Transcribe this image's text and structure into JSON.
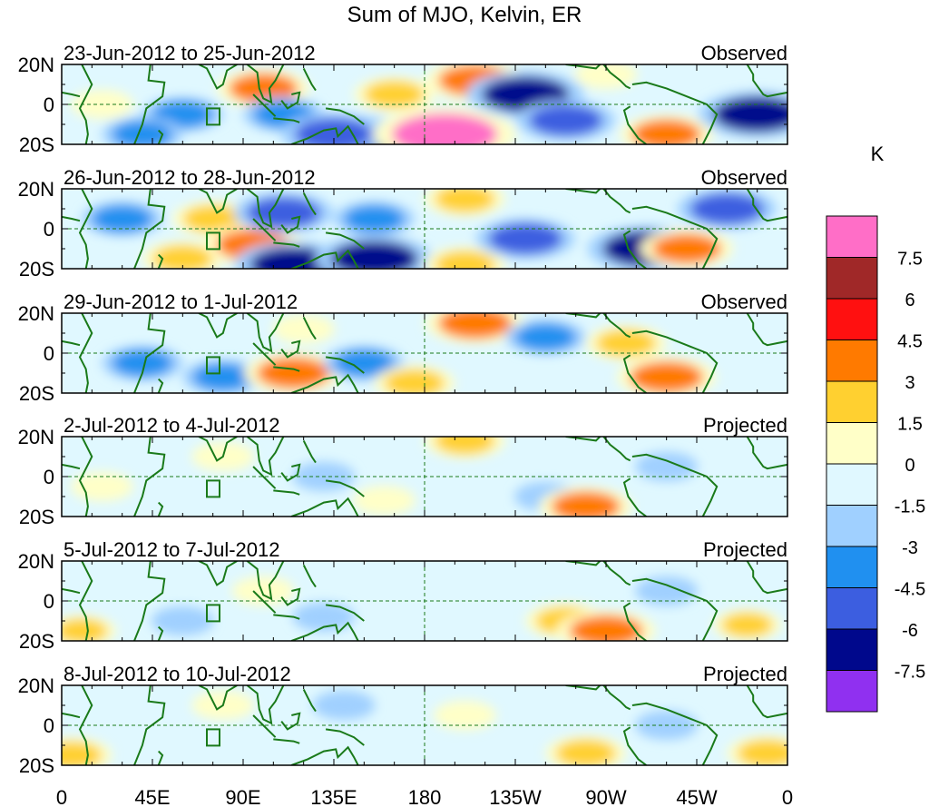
{
  "figure": {
    "title": "Sum of MJO, Kelvin, ER",
    "lat_labels": [
      "20N",
      "0",
      "20S"
    ],
    "lon_labels": [
      "0",
      "45E",
      "90E",
      "135E",
      "180",
      "135W",
      "90W",
      "45W",
      "0"
    ],
    "panels": [
      {
        "date_range": "23-Jun-2012 to 25-Jun-2012",
        "status": "Observed"
      },
      {
        "date_range": "26-Jun-2012 to 28-Jun-2012",
        "status": "Observed"
      },
      {
        "date_range": "29-Jun-2012 to 1-Jul-2012",
        "status": "Observed"
      },
      {
        "date_range": "2-Jul-2012 to 4-Jul-2012",
        "status": "Projected"
      },
      {
        "date_range": "5-Jul-2012 to 7-Jul-2012",
        "status": "Projected"
      },
      {
        "date_range": "8-Jul-2012 to 10-Jul-2012",
        "status": "Projected"
      }
    ]
  },
  "colorbar": {
    "unit": "K",
    "labels": [
      "7.5",
      "6",
      "4.5",
      "3",
      "1.5",
      "0",
      "-1.5",
      "-3",
      "-4.5",
      "-6",
      "-7.5"
    ],
    "colors": [
      "#ff6ec7",
      "#a02828",
      "#ff1010",
      "#ff7a00",
      "#ffd030",
      "#ffffc8",
      "#e0f8ff",
      "#a0d0ff",
      "#2090f0",
      "#3c5ee0",
      "#00088c",
      "#9030f0"
    ]
  },
  "colors": {
    "coast": "#1a7a1a",
    "grid": "#1a7a1a"
  },
  "anomalies": [
    [
      {
        "lon": 20,
        "lat": 0,
        "v": 1.5
      },
      {
        "lon": 60,
        "lat": -5,
        "v": -3
      },
      {
        "lon": 100,
        "lat": 8,
        "v": 4
      },
      {
        "lon": 110,
        "lat": -5,
        "v": -3
      },
      {
        "lon": 145,
        "lat": -18,
        "v": -7
      },
      {
        "lon": 135,
        "lat": -15,
        "v": -5
      },
      {
        "lon": 165,
        "lat": 5,
        "v": 3
      },
      {
        "lon": 190,
        "lat": -15,
        "v": 8
      },
      {
        "lon": 205,
        "lat": 12,
        "v": 4.5
      },
      {
        "lon": 230,
        "lat": 5,
        "v": -6
      },
      {
        "lon": 250,
        "lat": -8,
        "v": -4.5
      },
      {
        "lon": 300,
        "lat": -15,
        "v": 4
      },
      {
        "lon": 345,
        "lat": -5,
        "v": -6
      },
      {
        "lon": 270,
        "lat": 15,
        "v": 1.5
      },
      {
        "lon": 40,
        "lat": -15,
        "v": -3
      }
    ],
    [
      {
        "lon": 30,
        "lat": 5,
        "v": -3
      },
      {
        "lon": 75,
        "lat": 5,
        "v": 3
      },
      {
        "lon": 95,
        "lat": -8,
        "v": 4.5
      },
      {
        "lon": 110,
        "lat": 8,
        "v": -4.5
      },
      {
        "lon": 115,
        "lat": -18,
        "v": -6
      },
      {
        "lon": 155,
        "lat": -15,
        "v": -6
      },
      {
        "lon": 155,
        "lat": 5,
        "v": -3
      },
      {
        "lon": 200,
        "lat": 15,
        "v": 3
      },
      {
        "lon": 200,
        "lat": -18,
        "v": 3
      },
      {
        "lon": 230,
        "lat": -5,
        "v": -4.5
      },
      {
        "lon": 290,
        "lat": -10,
        "v": -6
      },
      {
        "lon": 310,
        "lat": -10,
        "v": 4
      },
      {
        "lon": 330,
        "lat": 10,
        "v": -4.5
      },
      {
        "lon": 60,
        "lat": -15,
        "v": 3
      }
    ],
    [
      {
        "lon": 40,
        "lat": -5,
        "v": -3
      },
      {
        "lon": 80,
        "lat": -12,
        "v": -3
      },
      {
        "lon": 115,
        "lat": -10,
        "v": 4.5
      },
      {
        "lon": 150,
        "lat": -5,
        "v": -3
      },
      {
        "lon": 175,
        "lat": -15,
        "v": 3
      },
      {
        "lon": 205,
        "lat": 15,
        "v": 4.5
      },
      {
        "lon": 240,
        "lat": 8,
        "v": -3
      },
      {
        "lon": 300,
        "lat": -12,
        "v": 4.5
      },
      {
        "lon": 280,
        "lat": 5,
        "v": 3
      },
      {
        "lon": 120,
        "lat": 12,
        "v": 1.5
      }
    ],
    [
      {
        "lon": 20,
        "lat": -5,
        "v": 1.5
      },
      {
        "lon": 80,
        "lat": 10,
        "v": 1.5
      },
      {
        "lon": 130,
        "lat": 0,
        "v": -1.5
      },
      {
        "lon": 200,
        "lat": 18,
        "v": 3
      },
      {
        "lon": 240,
        "lat": -10,
        "v": -1.5
      },
      {
        "lon": 260,
        "lat": -15,
        "v": 4
      },
      {
        "lon": 300,
        "lat": 5,
        "v": -1.5
      },
      {
        "lon": 160,
        "lat": -12,
        "v": 1.5
      }
    ],
    [
      {
        "lon": 10,
        "lat": -15,
        "v": 2
      },
      {
        "lon": 100,
        "lat": 5,
        "v": 1.5
      },
      {
        "lon": 130,
        "lat": -8,
        "v": -1.5
      },
      {
        "lon": 250,
        "lat": -10,
        "v": 3
      },
      {
        "lon": 270,
        "lat": -15,
        "v": 4.5
      },
      {
        "lon": 300,
        "lat": 5,
        "v": -1.5
      },
      {
        "lon": 340,
        "lat": -12,
        "v": 2
      },
      {
        "lon": 60,
        "lat": -10,
        "v": -1.5
      }
    ],
    [
      {
        "lon": 5,
        "lat": -15,
        "v": 3
      },
      {
        "lon": 80,
        "lat": 10,
        "v": 1.5
      },
      {
        "lon": 140,
        "lat": 10,
        "v": -1.5
      },
      {
        "lon": 260,
        "lat": -14,
        "v": 3
      },
      {
        "lon": 300,
        "lat": 0,
        "v": -1.5
      },
      {
        "lon": 350,
        "lat": -14,
        "v": 3
      },
      {
        "lon": 200,
        "lat": 5,
        "v": 1.5
      }
    ]
  ]
}
